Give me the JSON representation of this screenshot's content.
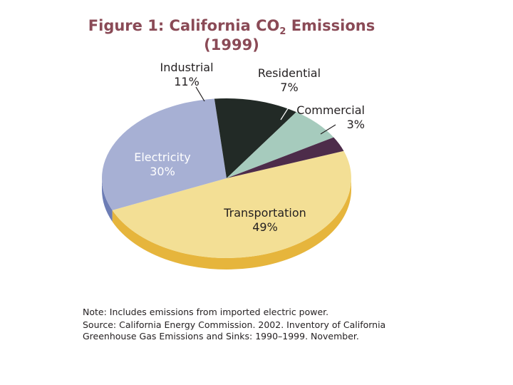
{
  "chart_data": {
    "type": "pie",
    "title_prefix": "Figure 1: California CO",
    "title_subscript": "2",
    "title_suffix": " Emissions",
    "subtitle": "(1999)",
    "slices": [
      {
        "name": "Transportation",
        "label": "49%",
        "value": 49,
        "color": "#f3df95"
      },
      {
        "name": "Electricity",
        "label": "30%",
        "value": 30,
        "color": "#a7b0d4"
      },
      {
        "name": "Industrial",
        "label": "11%",
        "value": 11,
        "color": "#222a26"
      },
      {
        "name": "Residential",
        "label": "7%",
        "value": 7,
        "color": "#a6cbbd"
      },
      {
        "name": "Commercial",
        "label": "3%",
        "value": 3,
        "color": "#4d2c4a"
      }
    ],
    "side_colors": {
      "Transportation": "#e6b53c",
      "Electricity": "#6d7db5",
      "Commercial": "#35203a"
    }
  },
  "notes": {
    "note": "Note: Includes emissions from imported electric power.",
    "source": "Source: California Energy Commission. 2002. Inventory of California Greenhouse Gas Emissions and Sinks: 1990–1999. November."
  }
}
